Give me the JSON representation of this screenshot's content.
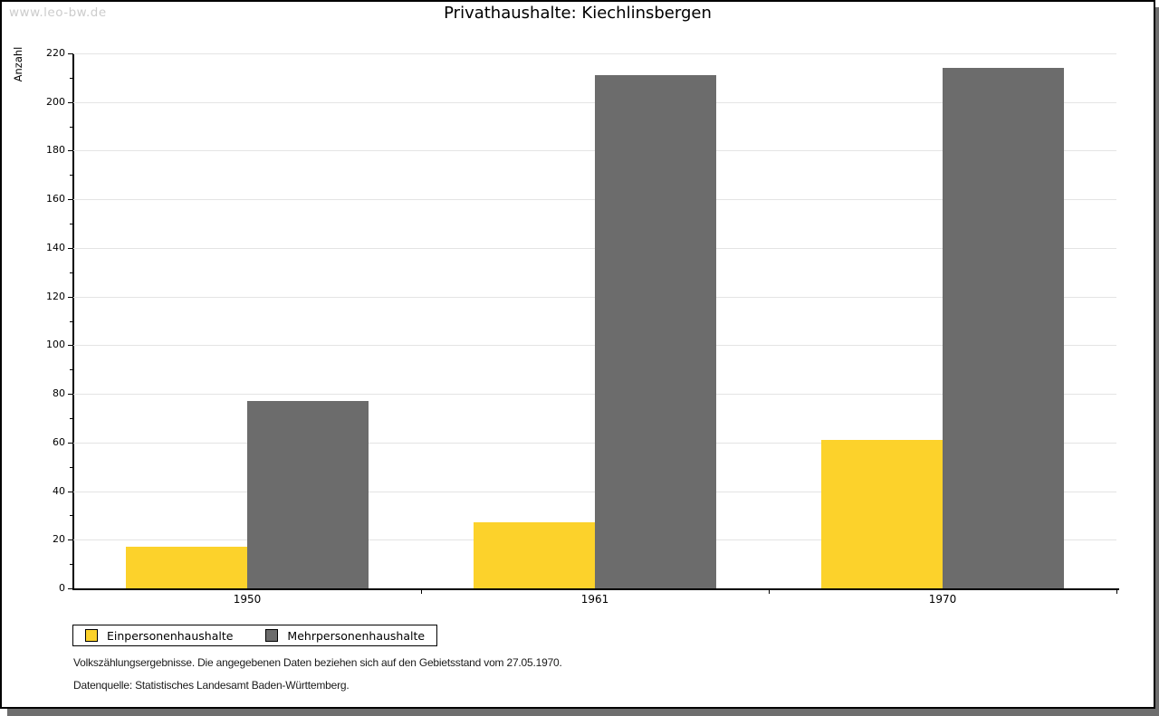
{
  "watermark": "www.leo-bw.de",
  "title": "Privathaushalte: Kiechlinsbergen",
  "chart_data": {
    "type": "bar",
    "title": "Privathaushalte: Kiechlinsbergen",
    "categories": [
      "1950",
      "1961",
      "1970"
    ],
    "series": [
      {
        "name": "Einpersonenhaushalte",
        "color": "#FCD22B",
        "values": [
          17,
          27,
          61
        ]
      },
      {
        "name": "Mehrpersonenhaushalte",
        "color": "#6C6C6C",
        "values": [
          77,
          211,
          214
        ]
      }
    ],
    "xlabel": "",
    "ylabel": "Anzahl",
    "ylim": [
      0,
      220
    ],
    "y_major_step": 20,
    "y_minor_step": 10,
    "grid": true,
    "legend_position": "bottom-left",
    "colors": {
      "gridline": "#e4e4e4",
      "axis": "#000000",
      "watermark": "#cccccc",
      "frame_shadow": "#6e6e6e"
    }
  },
  "footer": {
    "line1": "Volkszählungsergebnisse. Die angegebenen Daten beziehen sich auf den Gebietsstand vom 27.05.1970.",
    "line2": "Datenquelle: Statistisches Landesamt Baden-Württemberg."
  }
}
